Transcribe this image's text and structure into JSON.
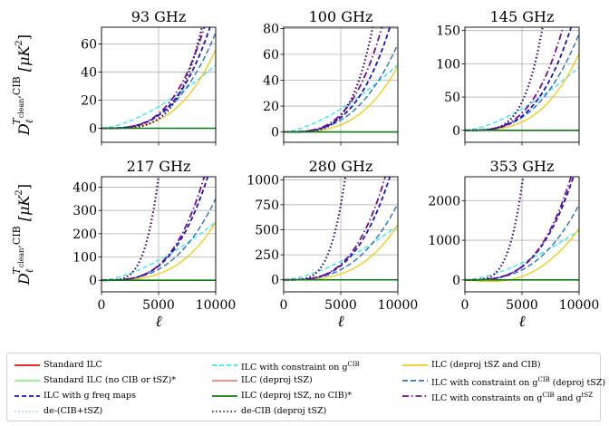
{
  "figure": {
    "ylabel_main": "D",
    "ylabel_sub": "ℓ",
    "ylabel_sup": "T",
    "ylabel_sup_sub": "clean",
    "ylabel_sup_tail": ",CIB",
    "ylabel_unit_open": "[μK",
    "ylabel_unit_pow": "2",
    "ylabel_unit_close": "]",
    "xlabel": "ℓ"
  },
  "chart_data": [
    {
      "type": "line",
      "title": "93 GHz",
      "xlim": [
        0,
        10000
      ],
      "ylim": [
        -10,
        72
      ],
      "xticks": [
        0,
        5000,
        10000
      ],
      "xticklabels": [
        "0",
        "5000",
        "10000"
      ],
      "yticks": [
        0,
        20,
        40,
        60
      ],
      "yticklabels": [
        "0",
        "20",
        "40",
        "60"
      ],
      "series": [
        {
          "name": "de-CIB (deproj tSZ)",
          "end_x": 8800,
          "end_y": 72
        },
        {
          "name": "ILC with constraints on g^CIB and g^tSZ",
          "end_x": 9000,
          "end_y": 72
        },
        {
          "name": "ILC with g freq maps",
          "end_x": 9500,
          "end_y": 72
        },
        {
          "name": "ILC with constraint on g^CIB (deproj tSZ)",
          "end_x": 10000,
          "end_y": 68
        },
        {
          "name": "ILC with constraint on g^CIB",
          "end_x": 10000,
          "end_y": 45
        },
        {
          "name": "ILC (deproj tSZ and CIB)",
          "end_x": 10000,
          "end_y": 56
        },
        {
          "name": "ILC (deproj tSZ, no CIB)*",
          "end_x": 10000,
          "end_y": 0
        }
      ]
    },
    {
      "type": "line",
      "title": "100 GHz",
      "xlim": [
        0,
        10000
      ],
      "ylim": [
        -8,
        81
      ],
      "xticks": [
        0,
        5000,
        10000
      ],
      "xticklabels": [
        "0",
        "5000",
        "10000"
      ],
      "yticks": [
        0,
        20,
        40,
        60,
        80
      ],
      "yticklabels": [
        "0",
        "20",
        "40",
        "60",
        "80"
      ],
      "series": [
        {
          "name": "de-CIB (deproj tSZ)",
          "end_x": 7800,
          "end_y": 81
        },
        {
          "name": "ILC with constraints on g^CIB and g^tSZ",
          "end_x": 8600,
          "end_y": 81
        },
        {
          "name": "ILC with g freq maps",
          "end_x": 9300,
          "end_y": 81
        },
        {
          "name": "ILC with constraint on g^CIB (deproj tSZ)",
          "end_x": 10000,
          "end_y": 68
        },
        {
          "name": "ILC with constraint on g^CIB",
          "end_x": 10000,
          "end_y": 52
        },
        {
          "name": "ILC (deproj tSZ and CIB)",
          "end_x": 10000,
          "end_y": 51
        },
        {
          "name": "ILC (deproj tSZ, no CIB)*",
          "end_x": 10000,
          "end_y": 0
        }
      ]
    },
    {
      "type": "line",
      "title": "145 GHz",
      "xlim": [
        0,
        10000
      ],
      "ylim": [
        -18,
        155
      ],
      "xticks": [
        0,
        5000,
        10000
      ],
      "xticklabels": [
        "0",
        "5000",
        "10000"
      ],
      "yticks": [
        0,
        50,
        100,
        150
      ],
      "yticklabels": [
        "0",
        "50",
        "100",
        "150"
      ],
      "series": [
        {
          "name": "de-CIB (deproj tSZ)",
          "end_x": 6800,
          "end_y": 155
        },
        {
          "name": "ILC with constraints on g^CIB and g^tSZ",
          "end_x": 8600,
          "end_y": 155
        },
        {
          "name": "ILC with g freq maps",
          "end_x": 9300,
          "end_y": 155
        },
        {
          "name": "ILC with constraint on g^CIB (deproj tSZ)",
          "end_x": 10000,
          "end_y": 145
        },
        {
          "name": "ILC with constraint on g^CIB",
          "end_x": 10000,
          "end_y": 95
        },
        {
          "name": "ILC (deproj tSZ and CIB)",
          "end_x": 10000,
          "end_y": 115
        },
        {
          "name": "ILC (deproj tSZ, no CIB)*",
          "end_x": 10000,
          "end_y": 0
        }
      ]
    },
    {
      "type": "line",
      "title": "217 GHz",
      "xlim": [
        0,
        10000
      ],
      "ylim": [
        -50,
        445
      ],
      "xticks": [
        0,
        5000,
        10000
      ],
      "xticklabels": [
        "0",
        "5000",
        "10000"
      ],
      "yticks": [
        0,
        100,
        200,
        300,
        400
      ],
      "yticklabels": [
        "0",
        "100",
        "200",
        "300",
        "400"
      ],
      "series": [
        {
          "name": "de-CIB (deproj tSZ)",
          "end_x": 5000,
          "end_y": 445
        },
        {
          "name": "ILC with constraints on g^CIB and g^tSZ",
          "end_x": 9000,
          "end_y": 445
        },
        {
          "name": "ILC with g freq maps",
          "end_x": 9300,
          "end_y": 445
        },
        {
          "name": "ILC with constraint on g^CIB (deproj tSZ)",
          "end_x": 10000,
          "end_y": 350
        },
        {
          "name": "ILC with constraint on g^CIB",
          "end_x": 10000,
          "end_y": 250
        },
        {
          "name": "ILC (deproj tSZ and CIB)",
          "end_x": 10000,
          "end_y": 250
        },
        {
          "name": "ILC (deproj tSZ, no CIB)*",
          "end_x": 10000,
          "end_y": 0
        }
      ]
    },
    {
      "type": "line",
      "title": "280 GHz",
      "xlim": [
        0,
        10000
      ],
      "ylim": [
        -120,
        1030
      ],
      "xticks": [
        0,
        5000,
        10000
      ],
      "xticklabels": [
        "0",
        "5000",
        "10000"
      ],
      "yticks": [
        0,
        250,
        500,
        750,
        1000
      ],
      "yticklabels": [
        "0",
        "250",
        "500",
        "750",
        "1000"
      ],
      "series": [
        {
          "name": "de-CIB (deproj tSZ)",
          "end_x": 5400,
          "end_y": 1030
        },
        {
          "name": "ILC with constraints on g^CIB and g^tSZ",
          "end_x": 8900,
          "end_y": 1030
        },
        {
          "name": "ILC with g freq maps",
          "end_x": 9300,
          "end_y": 1030
        },
        {
          "name": "ILC with constraint on g^CIB (deproj tSZ)",
          "end_x": 10000,
          "end_y": 760
        },
        {
          "name": "ILC with constraint on g^CIB",
          "end_x": 10000,
          "end_y": 540
        },
        {
          "name": "ILC (deproj tSZ and CIB)",
          "end_x": 10000,
          "end_y": 550
        },
        {
          "name": "ILC (deproj tSZ, no CIB)*",
          "end_x": 10000,
          "end_y": 0
        }
      ]
    },
    {
      "type": "line",
      "title": "353 GHz",
      "xlim": [
        0,
        10000
      ],
      "ylim": [
        -300,
        2600
      ],
      "xticks": [
        0,
        5000,
        10000
      ],
      "xticklabels": [
        "0",
        "5000",
        "10000"
      ],
      "yticks": [
        0,
        1000,
        2000
      ],
      "yticklabels": [
        "0",
        "1000",
        "2000"
      ],
      "series": [
        {
          "name": "de-CIB (deproj tSZ)",
          "end_x": 5100,
          "end_y": 2600
        },
        {
          "name": "ILC with constraints on g^CIB and g^tSZ",
          "end_x": 9300,
          "end_y": 2600
        },
        {
          "name": "ILC with g freq maps",
          "end_x": 9500,
          "end_y": 2600
        },
        {
          "name": "ILC with constraint on g^CIB (deproj tSZ)",
          "end_x": 10000,
          "end_y": 1900
        },
        {
          "name": "ILC with constraint on g^CIB",
          "end_x": 10000,
          "end_y": 1250
        },
        {
          "name": "ILC (deproj tSZ and CIB)",
          "end_x": 10000,
          "end_y": 1300
        },
        {
          "name": "ILC (deproj tSZ, no CIB)*",
          "end_x": 10000,
          "end_y": 0
        }
      ]
    }
  ],
  "series_styles": {
    "de-CIB (deproj tSZ)": {
      "color": "#3b0a6e",
      "dash": "1.5 2.6",
      "width": 2.2,
      "exp": 4.2
    },
    "ILC with constraints on g^CIB and g^tSZ": {
      "color": "#7a0a8f",
      "dash": "7 3 1.5 3",
      "width": 1.8,
      "exp": 3.3
    },
    "ILC with g freq maps": {
      "color": "#1515c0",
      "dash": "5 3",
      "width": 1.8,
      "exp": 3.2
    },
    "ILC with constraint on g^CIB (deproj tSZ)": {
      "color": "#2574c0",
      "dash": "6 3",
      "width": 1.4,
      "exp": 2.9
    },
    "ILC with constraint on g^CIB": {
      "color": "#33e8ff",
      "dash": "5 3",
      "width": 1.4,
      "exp": 1.55
    },
    "ILC (deproj tSZ and CIB)": {
      "color": "#f2cd1f",
      "dash": "",
      "width": 1.4,
      "exp": 3.2
    },
    "ILC (deproj tSZ, no CIB)*": {
      "color": "#0f7a0f",
      "dash": "",
      "width": 1.6,
      "exp": 1
    }
  },
  "legend": {
    "placement": "bottom",
    "columns": [
      [
        {
          "label": "Standard ILC",
          "color": "#e01010",
          "dash": ""
        },
        {
          "label": "Standard ILC (no CIB or tSZ)*",
          "color": "#90ee90",
          "dash": ""
        },
        {
          "label": "ILC with g freq maps",
          "color": "#1515c0",
          "dash": "5 3"
        },
        {
          "label": "de-(CIB+tSZ)",
          "color": "#9ad6e0",
          "dash": "1.5 2.5"
        }
      ],
      [
        {
          "label": "ILC with constraint on g",
          "sup": "CIB",
          "color": "#33e8ff",
          "dash": "5 3"
        },
        {
          "label": "ILC (deproj tSZ)",
          "color": "#f08080",
          "dash": ""
        },
        {
          "label": "ILC (deproj tSZ, no CIB)*",
          "color": "#0f7a0f",
          "dash": ""
        },
        {
          "label": "de-CIB (deproj tSZ)",
          "color": "#3b0a6e",
          "dash": "1.5 2.6"
        }
      ],
      [
        {
          "label": "ILC (deproj tSZ and CIB)",
          "color": "#f2cd1f",
          "dash": ""
        },
        {
          "label": "ILC with constraint on g",
          "sup": "CIB",
          "tail": " (deproj tSZ)",
          "color": "#2574c0",
          "dash": "6 3"
        },
        {
          "label": "ILC with constraints on g",
          "sup": "CIB",
          "tail": " and g",
          "sup2": "tSZ",
          "color": "#7a0a8f",
          "dash": "7 3 1.5 3"
        }
      ]
    ]
  }
}
